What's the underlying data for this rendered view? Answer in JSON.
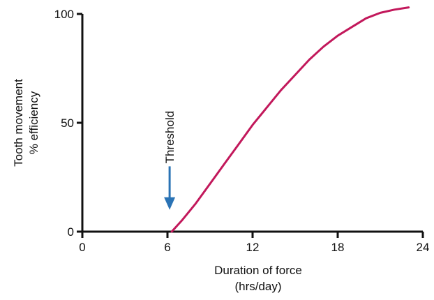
{
  "chart_data": {
    "type": "line",
    "xlabel_lines": [
      "Duration of force",
      "(hrs/day)"
    ],
    "ylabel_lines": [
      "Tooth movement",
      "% efficiency"
    ],
    "xlim": [
      0,
      24
    ],
    "ylim": [
      0,
      100
    ],
    "xticks": [
      0,
      6,
      12,
      18,
      24
    ],
    "yticks": [
      0,
      50,
      100
    ],
    "grid": false,
    "series": [
      {
        "color": "#c2185b",
        "x": [
          6.3,
          7,
          8,
          9,
          10,
          11,
          12,
          13,
          14,
          15,
          16,
          17,
          18,
          19,
          20,
          21,
          22,
          23
        ],
        "y": [
          0,
          5,
          13,
          22,
          31,
          40,
          49,
          57,
          65,
          72,
          79,
          85,
          90,
          94,
          98,
          100.5,
          102,
          103
        ]
      }
    ],
    "annotations": [
      {
        "text": "Threshold",
        "x": 6.3,
        "y_start": 30,
        "y_end": 10,
        "color": "#2a73b5"
      }
    ]
  }
}
